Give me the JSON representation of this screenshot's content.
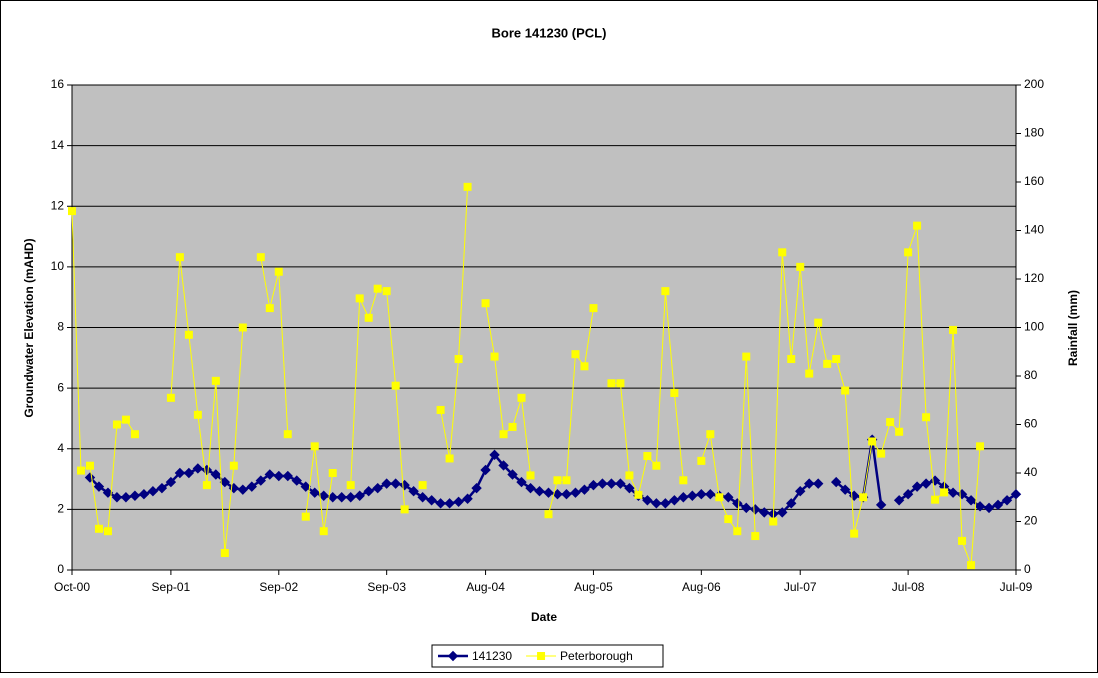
{
  "chart_data": {
    "type": "line",
    "title": "Bore 141230 (PCL)",
    "xlabel": "Date",
    "ylabel": "Groundwater Elevation (mAHD)",
    "y2label": "Rainfall (mm)",
    "categories": [
      "Oct-00",
      null,
      null,
      null,
      null,
      null,
      null,
      null,
      null,
      null,
      null,
      "Sep-01",
      null,
      null,
      null,
      null,
      null,
      null,
      null,
      null,
      null,
      null,
      null,
      "Sep-02",
      null,
      null,
      null,
      null,
      null,
      null,
      null,
      null,
      null,
      null,
      null,
      "Sep-03",
      null,
      null,
      null,
      null,
      null,
      null,
      null,
      null,
      null,
      null,
      "Aug-04",
      null,
      null,
      null,
      null,
      null,
      null,
      null,
      null,
      null,
      null,
      null,
      "Aug-05",
      null,
      null,
      null,
      null,
      null,
      null,
      null,
      null,
      null,
      null,
      null,
      "Aug-06",
      null,
      null,
      null,
      null,
      null,
      null,
      null,
      null,
      null,
      null,
      "Jul-07",
      null,
      null,
      null,
      null,
      null,
      null,
      null,
      null,
      null,
      null,
      null,
      "Jul-08",
      null,
      null,
      null,
      null,
      null,
      null,
      null,
      null,
      null,
      null,
      null,
      "Jul-09"
    ],
    "series": [
      {
        "name": "141230",
        "color": "#000080",
        "marker": "diamond",
        "axis": "y",
        "values": [
          null,
          null,
          3.05,
          2.75,
          2.55,
          2.4,
          2.4,
          2.45,
          2.5,
          2.6,
          2.7,
          2.9,
          3.2,
          3.2,
          3.35,
          3.3,
          3.15,
          2.9,
          2.7,
          2.65,
          2.75,
          2.95,
          3.15,
          3.1,
          3.1,
          2.95,
          2.75,
          2.55,
          2.45,
          2.4,
          2.4,
          2.4,
          2.45,
          2.6,
          2.7,
          2.85,
          2.85,
          2.8,
          2.6,
          2.4,
          2.3,
          2.2,
          2.2,
          2.25,
          2.35,
          2.7,
          3.3,
          3.8,
          3.45,
          3.15,
          2.9,
          2.7,
          2.6,
          2.55,
          2.5,
          2.5,
          2.55,
          2.65,
          2.8,
          2.85,
          2.85,
          2.85,
          2.7,
          2.45,
          2.3,
          2.2,
          2.2,
          2.3,
          2.4,
          2.45,
          2.5,
          2.5,
          2.45,
          2.4,
          2.2,
          2.05,
          2.0,
          1.9,
          1.85,
          1.9,
          2.2,
          2.6,
          2.85,
          2.85,
          null,
          2.9,
          2.65,
          2.45,
          2.4,
          4.3,
          2.15,
          null,
          2.3,
          2.5,
          2.75,
          2.85,
          2.95,
          2.75,
          2.55,
          2.5,
          2.3,
          2.1,
          2.05,
          2.15,
          2.3,
          2.5
        ]
      },
      {
        "name": "Peterborough",
        "color": "#ffff00",
        "marker": "square",
        "axis": "y2",
        "values": [
          148,
          41,
          43,
          17,
          16,
          60,
          62,
          56,
          null,
          null,
          null,
          71,
          129,
          97,
          64,
          35,
          78,
          7,
          43,
          100,
          null,
          129,
          108,
          123,
          56,
          null,
          22,
          51,
          16,
          40,
          null,
          35,
          112,
          104,
          116,
          115,
          76,
          25,
          null,
          35,
          null,
          66,
          46,
          87,
          158,
          null,
          110,
          88,
          56,
          59,
          71,
          39,
          null,
          23,
          37,
          37,
          89,
          84,
          108,
          null,
          77,
          77,
          39,
          31,
          47,
          43,
          115,
          73,
          37,
          null,
          45,
          56,
          30,
          21,
          16,
          88,
          14,
          null,
          20,
          131,
          87,
          125,
          81,
          102,
          85,
          87,
          74,
          15,
          30,
          53,
          48,
          61,
          57,
          131,
          142,
          63,
          29,
          32,
          99,
          12,
          2,
          51,
          null,
          null,
          null,
          null
        ]
      }
    ],
    "ylim": [
      0,
      16
    ],
    "yticks": [
      0,
      2,
      4,
      6,
      8,
      10,
      12,
      14,
      16
    ],
    "y2lim": [
      0,
      200
    ],
    "y2ticks": [
      0,
      20,
      40,
      60,
      80,
      100,
      120,
      140,
      160,
      180,
      200
    ],
    "grid": true,
    "legend": "bottom",
    "plot_background": "#c0c0c0"
  }
}
